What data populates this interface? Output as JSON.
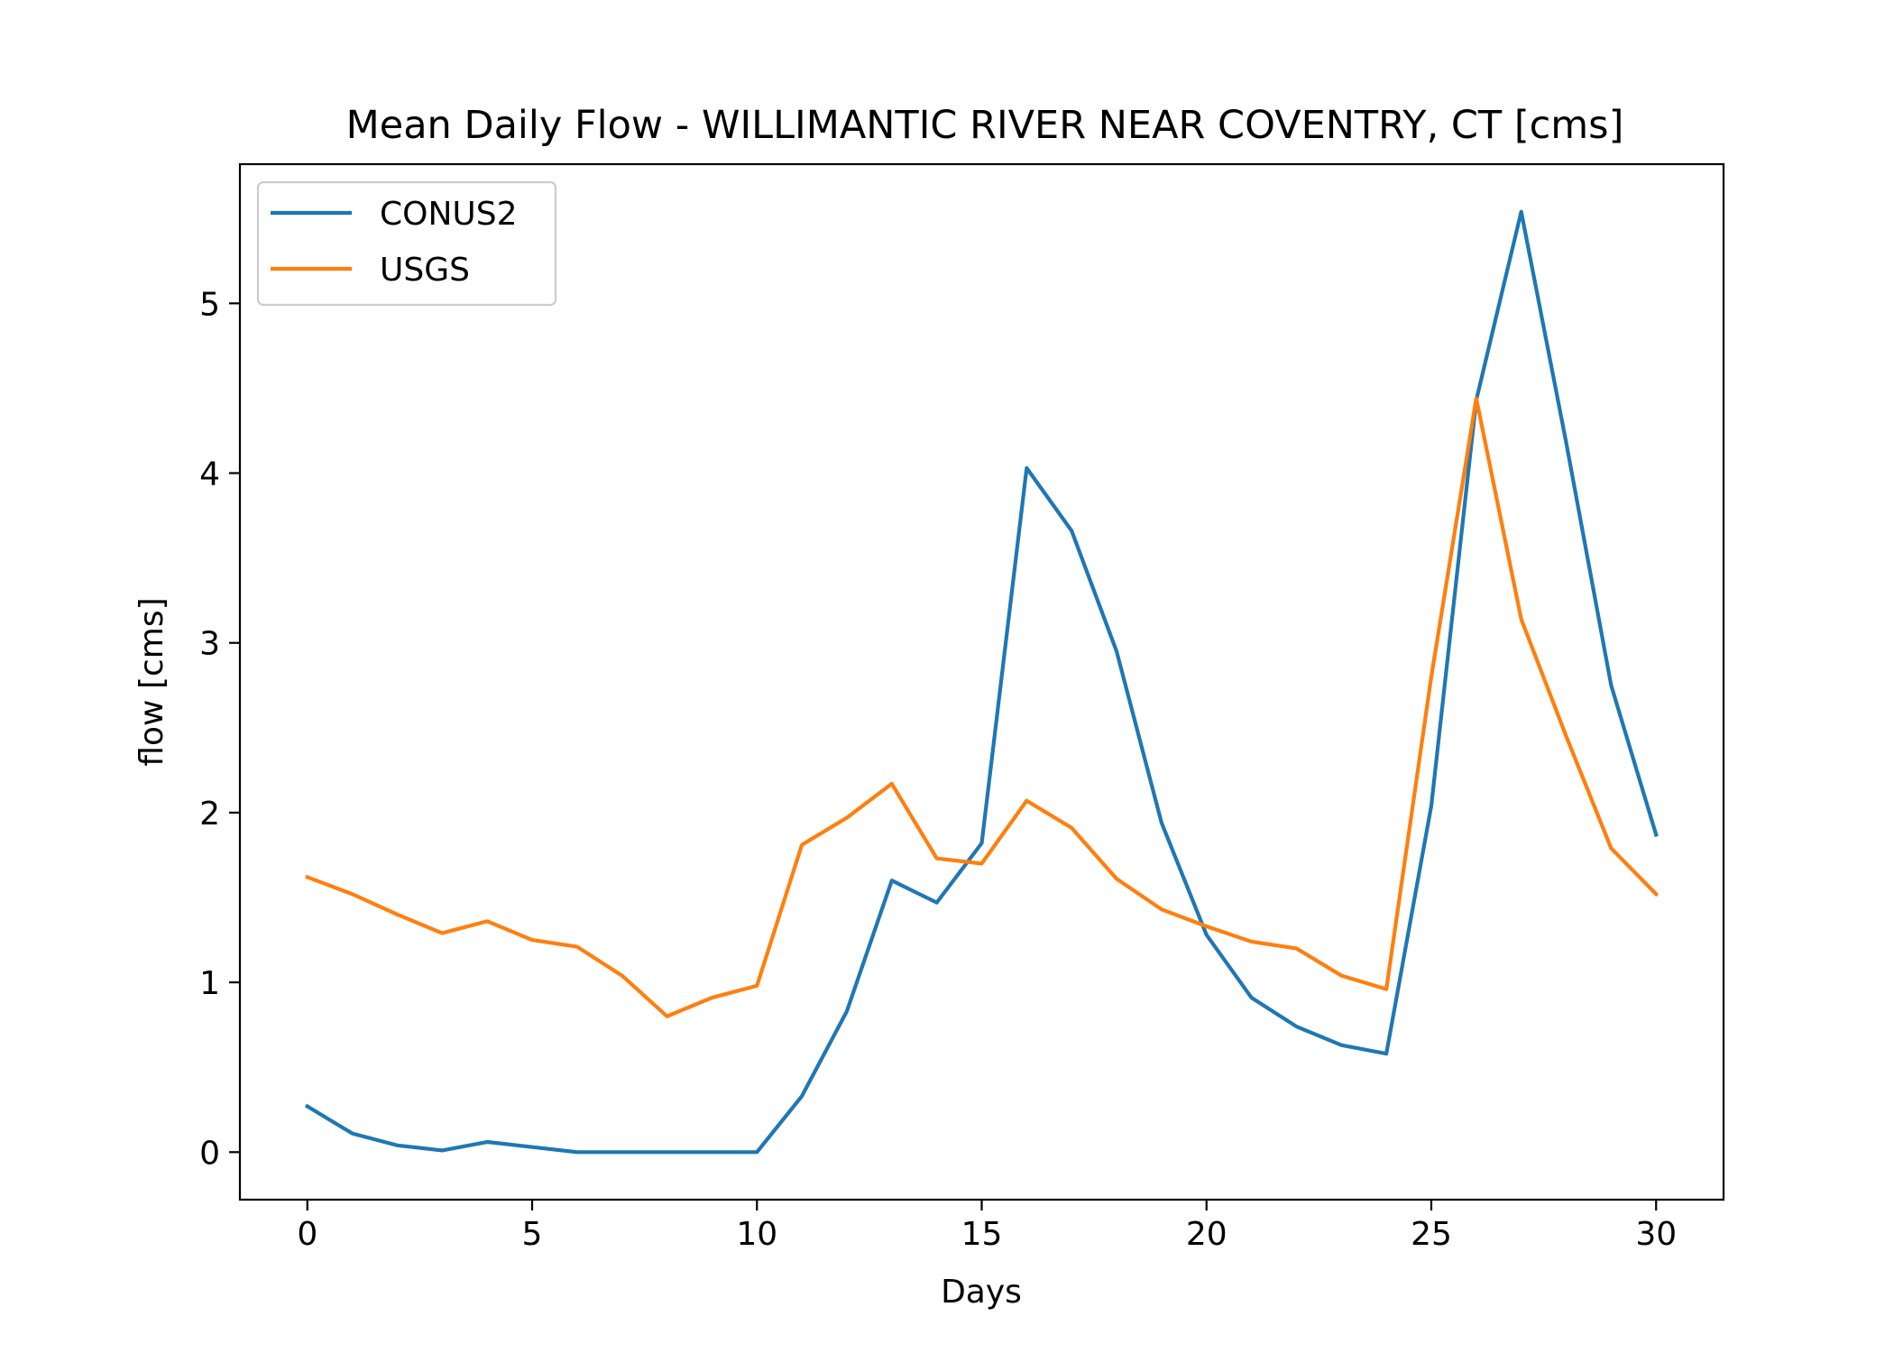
{
  "chart_data": {
    "type": "line",
    "title": "Mean Daily Flow - WILLIMANTIC RIVER NEAR COVENTRY, CT [cms]",
    "xlabel": "Days",
    "ylabel": "flow [cms]",
    "xlim": [
      -1.5,
      31.5
    ],
    "ylim": [
      -0.28,
      5.82
    ],
    "xticks": [
      0,
      5,
      10,
      15,
      20,
      25,
      30
    ],
    "yticks": [
      0,
      1,
      2,
      3,
      4,
      5
    ],
    "grid": false,
    "legend_position": "top-left",
    "x": [
      0,
      1,
      2,
      3,
      4,
      5,
      6,
      7,
      8,
      9,
      10,
      11,
      12,
      13,
      14,
      15,
      16,
      17,
      18,
      19,
      20,
      21,
      22,
      23,
      24,
      25,
      26,
      27,
      28,
      29,
      30
    ],
    "series": [
      {
        "name": "CONUS2",
        "color": "#1f77b4",
        "values": [
          0.27,
          0.11,
          0.04,
          0.01,
          0.06,
          0.03,
          0.0,
          0.0,
          0.0,
          0.0,
          0.0,
          0.33,
          0.83,
          1.6,
          1.47,
          1.82,
          4.03,
          3.66,
          2.95,
          1.94,
          1.28,
          0.91,
          0.74,
          0.63,
          0.58,
          2.04,
          4.43,
          5.54,
          4.18,
          2.75,
          1.87
        ]
      },
      {
        "name": "USGS",
        "color": "#ff7f0e",
        "values": [
          1.62,
          1.52,
          1.4,
          1.29,
          1.36,
          1.25,
          1.21,
          1.04,
          0.8,
          0.91,
          0.98,
          1.81,
          1.97,
          2.17,
          1.73,
          1.7,
          2.07,
          1.91,
          1.61,
          1.43,
          1.33,
          1.24,
          1.2,
          1.04,
          0.96,
          2.8,
          4.44,
          3.14,
          2.45,
          1.79,
          1.52
        ]
      }
    ]
  }
}
